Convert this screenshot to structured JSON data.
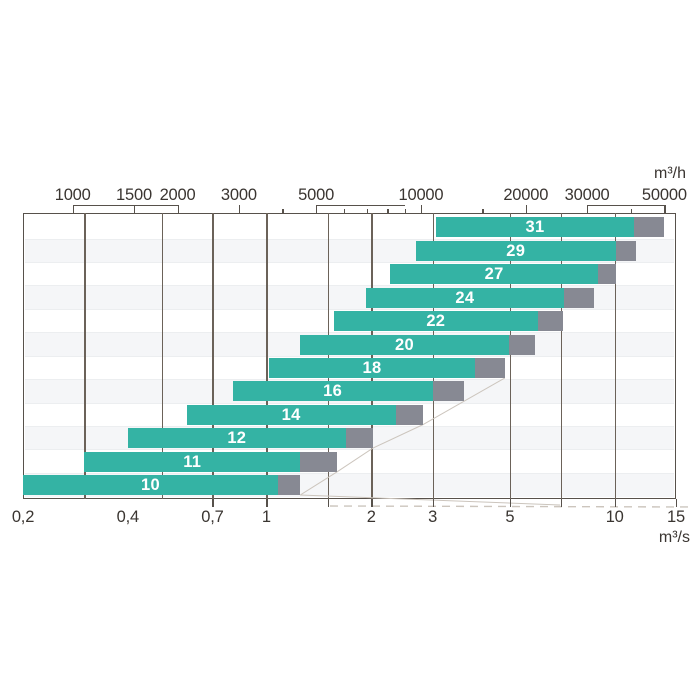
{
  "units": {
    "top_flow_unit": "m³/h",
    "bottom_flow_unit": "m³/s"
  },
  "colors": {
    "bar_teal": "#34b3a4",
    "bar_extension_gray": "#878993",
    "axis_line": "#57514b",
    "gridline": "#6b6259",
    "text": "#3a3531",
    "bar_label_text": "#ffffff",
    "guide_line": "#ccc5bd"
  },
  "chart_data": {
    "type": "bar",
    "orientation": "horizontal-range",
    "x_scale": "log",
    "xlim": [
      0.2,
      15
    ],
    "x_unit_bottom": "m³/s",
    "x_unit_top": "m³/h",
    "grid": "vertical-only",
    "bars": [
      {
        "size": "31",
        "from": 3.06,
        "to": 11.4,
        "ext_to": 13.86
      },
      {
        "size": "29",
        "from": 2.68,
        "to": 10.08,
        "ext_to": 11.51
      },
      {
        "size": "27",
        "from": 2.27,
        "to": 8.95,
        "ext_to": 10.08
      },
      {
        "size": "24",
        "from": 1.93,
        "to": 7.15,
        "ext_to": 8.72
      },
      {
        "size": "22",
        "from": 1.56,
        "to": 6.02,
        "ext_to": 7.1
      },
      {
        "size": "20",
        "from": 1.25,
        "to": 4.97,
        "ext_to": 5.9
      },
      {
        "size": "18",
        "from": 1.02,
        "to": 3.96,
        "ext_to": 4.84
      },
      {
        "size": "16",
        "from": 0.8,
        "to": 3.0,
        "ext_to": 3.69
      },
      {
        "size": "14",
        "from": 0.59,
        "to": 2.35,
        "ext_to": 2.81
      },
      {
        "size": "12",
        "from": 0.4,
        "to": 1.69,
        "ext_to": 2.02
      },
      {
        "size": "11",
        "from": 0.3,
        "to": 1.25,
        "ext_to": 1.6
      },
      {
        "size": "10",
        "from": 0.2,
        "to": 1.08,
        "ext_to": 1.25
      }
    ],
    "gridlines_m3s": [
      0.3,
      0.5,
      0.7,
      1,
      1.5,
      2,
      3,
      5,
      7,
      10
    ],
    "bottom_axis": {
      "unit": "m³/s",
      "tick_values": [
        0.7,
        1,
        1.5,
        2,
        3,
        5,
        7,
        10,
        15
      ],
      "labels": [
        {
          "value": 0.2,
          "text": "0,2"
        },
        {
          "value": 0.4,
          "text": "0,4"
        },
        {
          "value": 0.7,
          "text": "0,7"
        },
        {
          "value": 1,
          "text": "1"
        },
        {
          "value": 2,
          "text": "2"
        },
        {
          "value": 3,
          "text": "3"
        },
        {
          "value": 5,
          "text": "5"
        },
        {
          "value": 10,
          "text": "10"
        },
        {
          "value": 15,
          "text": "15"
        }
      ]
    },
    "top_axis": {
      "unit": "m³/h",
      "labels": [
        {
          "value": 1000,
          "text": "1000"
        },
        {
          "value": 1500,
          "text": "1500"
        },
        {
          "value": 2000,
          "text": "2000"
        },
        {
          "value": 3000,
          "text": "3000"
        },
        {
          "value": 5000,
          "text": "5000"
        },
        {
          "value": 10000,
          "text": "10000"
        },
        {
          "value": 20000,
          "text": "20000"
        },
        {
          "value": 30000,
          "text": "30000"
        },
        {
          "value": 50000,
          "text": "50000"
        }
      ],
      "minor_tick_values": [
        4000,
        6000,
        7000,
        8000,
        9000,
        15000,
        40000
      ],
      "bracket_segments": [
        [
          1000,
          2000
        ],
        [
          5000,
          9000
        ],
        [
          30000,
          50000
        ]
      ]
    }
  }
}
